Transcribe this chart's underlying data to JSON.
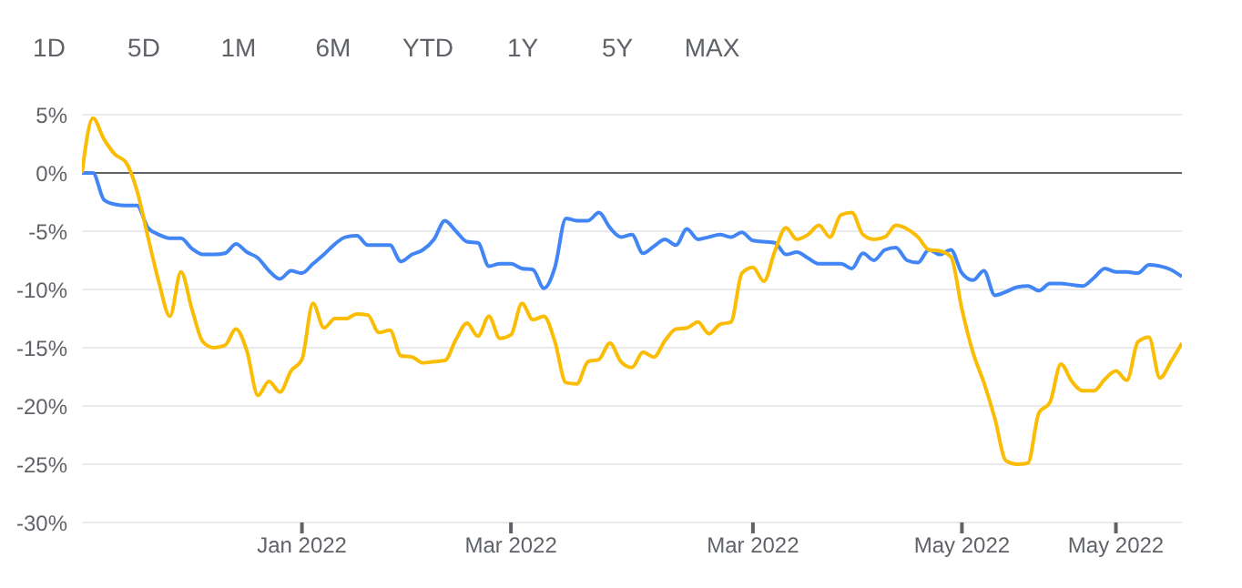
{
  "chart_data": {
    "type": "line",
    "annotations": [
      "1D",
      "5D",
      "1M",
      "6M",
      "YTD",
      "1Y",
      "5Y",
      "MAX"
    ],
    "categories": [
      null,
      null,
      null,
      null,
      null,
      null,
      null,
      null,
      null,
      null,
      null,
      null,
      null,
      null,
      null,
      null,
      null,
      null,
      null,
      null,
      "Jan 2022",
      null,
      null,
      null,
      null,
      null,
      null,
      null,
      null,
      null,
      null,
      null,
      null,
      null,
      null,
      null,
      null,
      null,
      null,
      "Mar 2022",
      null,
      null,
      null,
      null,
      null,
      null,
      null,
      null,
      null,
      null,
      null,
      null,
      null,
      null,
      null,
      null,
      null,
      null,
      null,
      null,
      null,
      "Mar 2022",
      null,
      null,
      null,
      null,
      null,
      null,
      null,
      null,
      null,
      null,
      null,
      null,
      null,
      null,
      null,
      null,
      null,
      null,
      "May 2022",
      null,
      null,
      null,
      null,
      null,
      null,
      null,
      null,
      null,
      null,
      null,
      null,
      null,
      "May 2022",
      null,
      null,
      null,
      null,
      null,
      null
    ],
    "ylim": [
      -30,
      5
    ],
    "yticks": [
      {
        "value": 5,
        "label": "5%"
      },
      {
        "value": 0,
        "label": "0%"
      },
      {
        "value": -5,
        "label": "-5%"
      },
      {
        "value": -10,
        "label": "-10%"
      },
      {
        "value": -15,
        "label": "-15%"
      },
      {
        "value": -20,
        "label": "-20%"
      },
      {
        "value": -25,
        "label": "-25%"
      },
      {
        "value": -30,
        "label": "-30%"
      }
    ],
    "grid": "y",
    "marker": "none",
    "line_style": "solid",
    "ref_lines": [
      {
        "axis": "y",
        "value": 0,
        "color": "#5f6368"
      }
    ],
    "series": [
      {
        "color": "#4285f4",
        "values": [
          0,
          0,
          -2.3,
          -2.7,
          -2.8,
          -2.8,
          -4.7,
          -5.3,
          -5.6,
          -5.6,
          -6.5,
          -7.0,
          -7.0,
          -6.9,
          -6.1,
          -6.8,
          -7.3,
          -8.4,
          -9.1,
          -8.4,
          -8.6,
          -7.8,
          -7.0,
          -6.1,
          -5.5,
          -5.4,
          -6.2,
          -6.2,
          -6.2,
          -7.6,
          -7.0,
          -6.6,
          -5.7,
          -4.1,
          -5.0,
          -5.9,
          -6.0,
          -8.0,
          -7.8,
          -7.8,
          -8.2,
          -8.3,
          -9.9,
          -8.1,
          -3.9,
          -4.1,
          -4.1,
          -3.4,
          -4.7,
          -5.5,
          -5.3,
          -6.9,
          -6.3,
          -5.7,
          -6.2,
          -4.8,
          -5.7,
          -5.5,
          -5.3,
          -5.5,
          -5.1,
          -5.8,
          -5.9,
          -6.0,
          -7.0,
          -6.8,
          -7.3,
          -7.8,
          -7.8,
          -7.8,
          -8.2,
          -6.9,
          -7.5,
          -6.6,
          -6.4,
          -7.5,
          -7.7,
          -6.6,
          -7.0,
          -6.6,
          -8.6,
          -9.2,
          -8.4,
          -10.5,
          -10.2,
          -9.8,
          -9.7,
          -10.1,
          -9.5,
          -9.5,
          -9.6,
          -9.7,
          -9.0,
          -8.2,
          -8.5,
          -8.5,
          -8.6,
          -7.9,
          -8.0,
          -8.3,
          -8.9
        ]
      },
      {
        "color": "#fbbc04",
        "values": [
          0,
          4.7,
          2.9,
          1.6,
          0.9,
          -1.5,
          -5.5,
          -9.4,
          -12.3,
          -8.5,
          -11.7,
          -14.5,
          -15.0,
          -14.8,
          -13.4,
          -15.3,
          -19.1,
          -17.9,
          -18.8,
          -17.0,
          -16.0,
          -11.2,
          -13.3,
          -12.5,
          -12.5,
          -12.1,
          -12.2,
          -13.7,
          -13.5,
          -15.7,
          -15.8,
          -16.3,
          -16.2,
          -16.1,
          -14.3,
          -12.9,
          -14.0,
          -12.3,
          -14.2,
          -13.9,
          -11.2,
          -12.6,
          -12.3,
          -14.5,
          -18.0,
          -18.1,
          -16.2,
          -16.0,
          -14.6,
          -16.2,
          -16.7,
          -15.4,
          -15.8,
          -14.4,
          -13.4,
          -13.3,
          -12.8,
          -13.8,
          -13.0,
          -12.8,
          -8.6,
          -8.1,
          -9.3,
          -6.7,
          -4.7,
          -5.7,
          -5.3,
          -4.5,
          -5.5,
          -3.6,
          -3.4,
          -5.3,
          -5.7,
          -5.5,
          -4.5,
          -4.8,
          -5.5,
          -6.6,
          -6.7,
          -7.2,
          -11.7,
          -15.4,
          -18.0,
          -21.1,
          -24.7,
          -25.0,
          -24.9,
          -20.6,
          -19.7,
          -16.4,
          -17.9,
          -18.7,
          -18.7,
          -17.7,
          -17.0,
          -17.8,
          -14.5,
          -14.1,
          -17.6,
          -16.2,
          -14.6
        ]
      }
    ]
  }
}
